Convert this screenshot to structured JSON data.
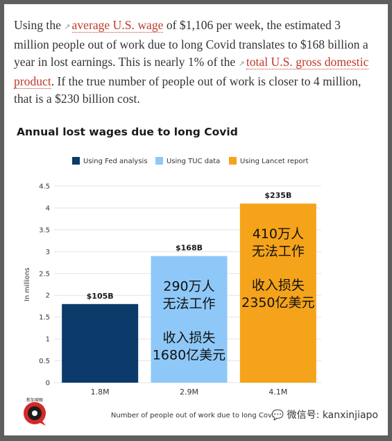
{
  "article": {
    "text_1": "Using the ",
    "link_1": "average U.S. wage",
    "text_2": " of $1,106 per week, the estimated 3 million people out of work due to long Covid translates to $168 billion a year in lost earnings. This is nearly 1% of the ",
    "link_2": "total U.S. gross domestic product",
    "text_3": ". If the true number of people out of work is closer to 4 million, that is a $230 billion cost.",
    "link_icon": "external-link-icon"
  },
  "chart_data": {
    "type": "bar",
    "title": "Annual lost wages due to long Covid",
    "xlabel": "Number of people out of work due to long Covid",
    "ylabel": "In millions",
    "ylim": [
      0,
      4.5
    ],
    "yticks": [
      "0",
      "0.5",
      "1",
      "1.5",
      "2",
      "2.5",
      "3",
      "3.5",
      "4",
      "4.5"
    ],
    "grid": true,
    "legend_position": "top",
    "categories": [
      "1.8M",
      "2.9M",
      "4.1M"
    ],
    "values": [
      1.8,
      2.9,
      4.1
    ],
    "series": [
      {
        "name": "Using Fed analysis",
        "color": "#0b3a6b"
      },
      {
        "name": "Using TUC data",
        "color": "#8ec8f8"
      },
      {
        "name": "Using Lancet report",
        "color": "#f5a31a"
      }
    ],
    "data_labels": [
      "$105B",
      "$168B",
      "$235B"
    ],
    "annotations": [
      {
        "bar": 1,
        "lines": [
          "290万人",
          "无法工作",
          "",
          "收入损失",
          "1680亿美元"
        ]
      },
      {
        "bar": 2,
        "lines": [
          "410万人",
          "无法工作",
          "",
          "收入损失",
          "2350亿美元"
        ]
      }
    ]
  },
  "footer": {
    "logo_text": "新加坡眼",
    "watermark": "微信号: kanxinjiapo",
    "watermark_icon": "wechat-icon"
  }
}
